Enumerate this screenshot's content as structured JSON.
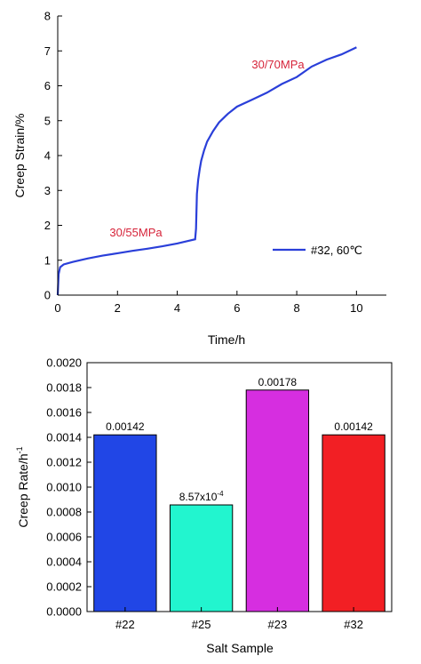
{
  "chart_data": [
    {
      "type": "line",
      "xlabel": "Time/h",
      "ylabel": "Creep Strain/%",
      "xlim": [
        0,
        11
      ],
      "ylim": [
        0,
        8
      ],
      "xticks": [
        "0",
        "2",
        "4",
        "6",
        "8",
        "10"
      ],
      "yticks": [
        "0",
        "1",
        "2",
        "3",
        "4",
        "5",
        "6",
        "7",
        "8"
      ],
      "grid": false,
      "legend_position": "lower-right",
      "annotations": [
        {
          "text": "30/55MPa",
          "x": 2.4,
          "y": 1.8
        },
        {
          "text": "30/70MPa",
          "x": 7.15,
          "y": 6.9
        }
      ],
      "series": [
        {
          "name": "#32, 60℃",
          "color": "#2a3fd9",
          "x": [
            0,
            0.03,
            0.08,
            0.2,
            0.5,
            1,
            1.5,
            2,
            2.5,
            3,
            3.5,
            4,
            4.3,
            4.6,
            4.63,
            4.66,
            4.7,
            4.75,
            4.8,
            4.9,
            5.0,
            5.2,
            5.4,
            5.7,
            6.0,
            6.5,
            7.0,
            7.5,
            8.0,
            8.5,
            9.0,
            9.5,
            10.0
          ],
          "y": [
            0,
            0.6,
            0.8,
            0.88,
            0.95,
            1.05,
            1.13,
            1.2,
            1.27,
            1.33,
            1.4,
            1.48,
            1.54,
            1.6,
            1.9,
            2.9,
            3.3,
            3.6,
            3.85,
            4.15,
            4.4,
            4.7,
            4.95,
            5.2,
            5.4,
            5.6,
            5.8,
            6.05,
            6.25,
            6.55,
            6.75,
            6.9,
            7.1
          ]
        }
      ]
    },
    {
      "type": "bar",
      "xlabel": "Salt Sample",
      "ylabel": "Creep Rate/h",
      "ylabel_superscript": "-1",
      "ylim": [
        0,
        0.002
      ],
      "yticks": [
        "0.0000",
        "0.0002",
        "0.0004",
        "0.0006",
        "0.0008",
        "0.0010",
        "0.0012",
        "0.0014",
        "0.0016",
        "0.0018",
        "0.0020"
      ],
      "grid": false,
      "categories": [
        "#22",
        "#25",
        "#23",
        "#32"
      ],
      "values": [
        0.00142,
        0.000857,
        0.00178,
        0.00142
      ],
      "colors": [
        "#2146e6",
        "#22f5cf",
        "#d62ee0",
        "#f21f24"
      ],
      "data_labels": [
        {
          "text": "0.00142"
        },
        {
          "text": "8.57x10",
          "sup": "-4"
        },
        {
          "text": "0.00178"
        },
        {
          "text": "0.00142"
        }
      ]
    }
  ]
}
